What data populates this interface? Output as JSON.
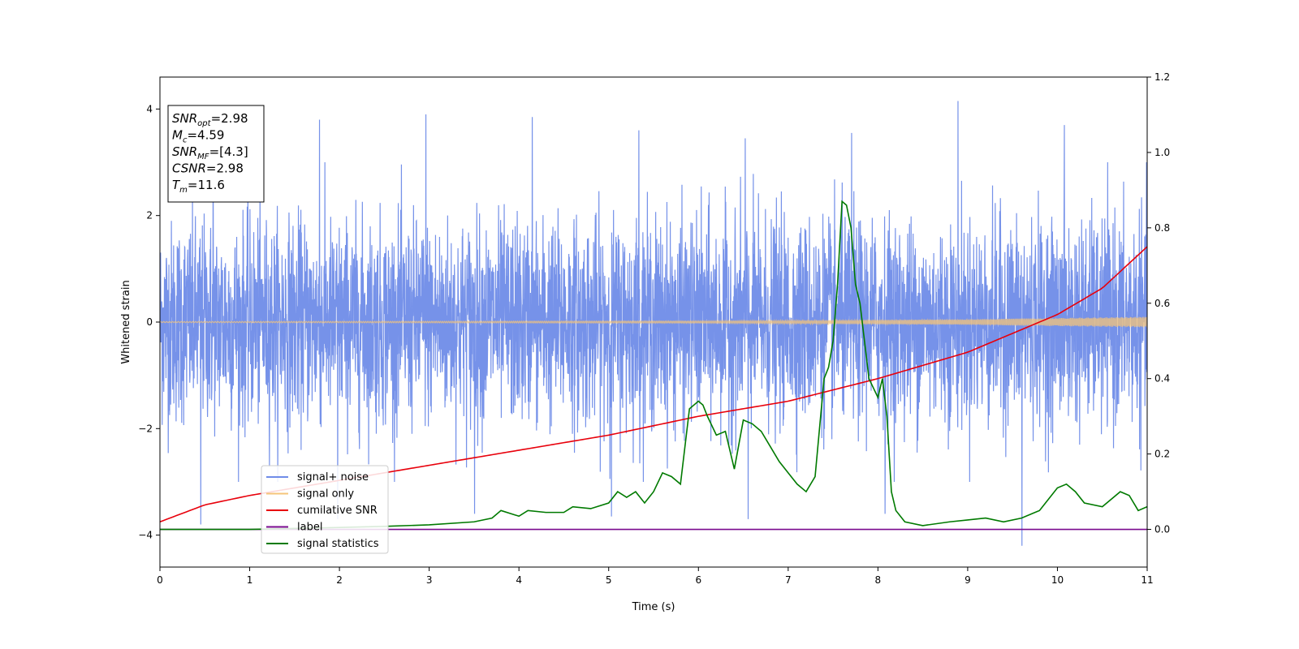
{
  "chart_data": {
    "type": "line",
    "title": "",
    "xlabel": "Time (s)",
    "ylabel": "Whitened strain",
    "y2label": "",
    "xlim": [
      0,
      11
    ],
    "ylim": [
      -4.6,
      4.6
    ],
    "y2lim": [
      -0.1,
      1.2
    ],
    "x_ticks": [
      "0",
      "1",
      "2",
      "3",
      "4",
      "5",
      "6",
      "7",
      "8",
      "9",
      "10",
      "11"
    ],
    "y_ticks": [
      "−4",
      "−2",
      "0",
      "2",
      "4"
    ],
    "y2_ticks": [
      "0.0",
      "0.2",
      "0.4",
      "0.6",
      "0.8",
      "1.0",
      "1.2"
    ],
    "grid": false,
    "legend_position": "lower-left",
    "info_box": [
      {
        "base": "SNR",
        "sub": "opt",
        "value": "=2.98"
      },
      {
        "base": "M",
        "sub": "c",
        "value": "=4.59"
      },
      {
        "base": "SNR",
        "sub": "MF",
        "value": "=[4.3]"
      },
      {
        "base": "CSNR",
        "sub": "",
        "value": "=2.98"
      },
      {
        "base": "T",
        "sub": "m",
        "value": "=11.6"
      }
    ],
    "series": [
      {
        "name": "signal+ noise",
        "color": "#6f8ce8",
        "axis": "left",
        "kind": "noise",
        "typical_band": [
          -1.5,
          1.5
        ],
        "peaks_max": [
          3.3,
          3.8,
          3.9,
          3.85,
          3.6,
          3.45,
          3.55,
          4.15,
          3.7
        ],
        "peaks_min": [
          -3.8,
          -3.7,
          -3.6,
          -3.65,
          -3.7,
          -3.6,
          -4.2
        ]
      },
      {
        "name": "signal only",
        "color": "#f5c47a",
        "axis": "left",
        "kind": "chirp",
        "amplitude_x": [
          0,
          6,
          9,
          11
        ],
        "amplitude": [
          0.01,
          0.02,
          0.05,
          0.1
        ]
      },
      {
        "name": "cumilative SNR",
        "color": "#e8000b",
        "axis": "right",
        "x": [
          0,
          0.5,
          1,
          2,
          3,
          4,
          5,
          6,
          7,
          8,
          9,
          10,
          10.5,
          11
        ],
        "values": [
          0.02,
          0.065,
          0.09,
          0.13,
          0.17,
          0.21,
          0.25,
          0.3,
          0.34,
          0.4,
          0.47,
          0.57,
          0.64,
          0.75
        ]
      },
      {
        "name": "label",
        "color": "#7a0a8f",
        "axis": "right",
        "x": [
          0,
          11
        ],
        "values": [
          0,
          0
        ]
      },
      {
        "name": "signal statistics",
        "color": "#007a00",
        "axis": "right",
        "x": [
          0,
          1,
          2,
          2.5,
          3,
          3.5,
          3.7,
          3.8,
          4.0,
          4.1,
          4.3,
          4.5,
          4.6,
          4.8,
          5.0,
          5.1,
          5.2,
          5.3,
          5.4,
          5.5,
          5.6,
          5.7,
          5.8,
          5.9,
          6.0,
          6.05,
          6.1,
          6.2,
          6.3,
          6.4,
          6.5,
          6.6,
          6.7,
          6.8,
          6.9,
          7.0,
          7.1,
          7.2,
          7.3,
          7.4,
          7.45,
          7.5,
          7.55,
          7.6,
          7.65,
          7.7,
          7.75,
          7.8,
          7.9,
          8.0,
          8.05,
          8.1,
          8.15,
          8.2,
          8.3,
          8.5,
          8.8,
          9.0,
          9.2,
          9.4,
          9.6,
          9.8,
          9.9,
          10.0,
          10.1,
          10.2,
          10.3,
          10.5,
          10.7,
          10.8,
          10.9,
          11.0
        ],
        "values": [
          0.0,
          0.0,
          0.005,
          0.008,
          0.012,
          0.02,
          0.03,
          0.05,
          0.035,
          0.05,
          0.045,
          0.045,
          0.06,
          0.055,
          0.07,
          0.1,
          0.085,
          0.1,
          0.07,
          0.1,
          0.15,
          0.14,
          0.12,
          0.32,
          0.34,
          0.33,
          0.3,
          0.25,
          0.26,
          0.16,
          0.29,
          0.28,
          0.26,
          0.22,
          0.18,
          0.15,
          0.12,
          0.1,
          0.14,
          0.4,
          0.43,
          0.5,
          0.65,
          0.87,
          0.86,
          0.8,
          0.65,
          0.6,
          0.4,
          0.35,
          0.4,
          0.3,
          0.1,
          0.05,
          0.02,
          0.01,
          0.02,
          0.025,
          0.03,
          0.02,
          0.03,
          0.05,
          0.08,
          0.11,
          0.12,
          0.1,
          0.07,
          0.06,
          0.1,
          0.09,
          0.05,
          0.06
        ]
      }
    ]
  }
}
